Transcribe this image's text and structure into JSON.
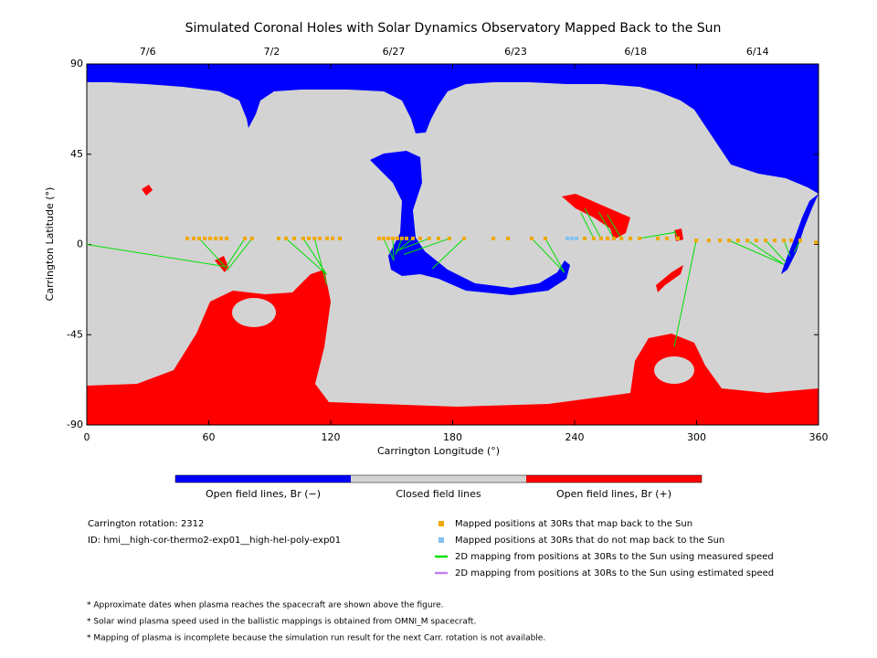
{
  "chart_data": {
    "type": "scatter",
    "title": "Simulated Coronal Holes with Solar Dynamics Observatory Mapped Back to the Sun",
    "xlabel": "Carrington Longitude (°)",
    "ylabel": "Carrington Latitude (°)",
    "xlim": [
      0,
      360
    ],
    "ylim": [
      -90,
      90
    ],
    "xticks": [
      0,
      60,
      120,
      180,
      240,
      300,
      360
    ],
    "yticks": [
      -90,
      -45,
      0,
      45,
      90
    ],
    "x2ticks": [
      {
        "value": 30,
        "label": "7/6"
      },
      {
        "value": 91,
        "label": "7/2"
      },
      {
        "value": 151,
        "label": "6/27"
      },
      {
        "value": 211,
        "label": "6/23"
      },
      {
        "value": 270,
        "label": "6/18"
      },
      {
        "value": 330,
        "label": "6/14"
      }
    ],
    "colorbar": [
      {
        "label": "Open field lines, Br (−)",
        "color": "#0000ff"
      },
      {
        "label": "Closed field lines",
        "color": "#d3d3d3"
      },
      {
        "label": "Open field lines, Br (+)",
        "color": "#ff0000"
      }
    ],
    "series": [
      {
        "name": "Mapped positions at 30Rs that map back to the Sun",
        "color": "#f0a800",
        "x": [
          49.4,
          52.6,
          55.3,
          58,
          60.7,
          63.4,
          66,
          68.8,
          77.8,
          81.3,
          94.4,
          98,
          102,
          106.5,
          109.2,
          112,
          114.6,
          118.2,
          120.9,
          124.5,
          143.8,
          146,
          148.3,
          150.6,
          152.8,
          155,
          157.3,
          160.4,
          164,
          168.5,
          173,
          178.4,
          185.6,
          200,
          207.2,
          218.9,
          225.6,
          245,
          249.4,
          253,
          256.2,
          259.3,
          263,
          267.4,
          272,
          280.9,
          285.4,
          290.8,
          299.8,
          306,
          311.5,
          316,
          320.4,
          325,
          329.4,
          334,
          338.4,
          343,
          346.5,
          351,
          358.7
        ],
        "values": [
          3,
          3,
          3,
          3,
          3,
          3,
          3,
          3,
          3,
          3,
          3,
          3,
          3,
          3,
          3,
          3,
          3,
          3,
          3,
          3,
          3,
          3,
          3,
          3,
          3,
          3,
          3,
          3,
          3,
          3,
          3,
          3,
          3,
          3,
          3,
          3,
          3,
          3,
          3,
          3,
          3,
          3,
          3,
          3,
          3,
          3,
          3,
          3,
          2,
          2,
          2,
          2,
          2,
          2,
          2,
          2,
          2,
          2,
          2,
          2,
          1
        ]
      },
      {
        "name": "Mapped positions at 30Rs that do not map back to the Sun",
        "color": "#80c0f0",
        "x": [
          236.4,
          238.6,
          240.9
        ],
        "values": [
          3,
          3,
          3
        ]
      },
      {
        "name": "2D mapping from positions at 30Rs to the Sun using measured speed",
        "color": "#00e000",
        "x": [
          [
            0,
            68
          ],
          [
            55.3,
            68
          ],
          [
            77.8,
            68
          ],
          [
            81.3,
            69
          ],
          [
            98,
            118
          ],
          [
            106.5,
            118
          ],
          [
            112,
            118
          ],
          [
            146,
            151
          ],
          [
            150.6,
            151
          ],
          [
            155,
            152
          ],
          [
            160.4,
            152
          ],
          [
            168.5,
            153
          ],
          [
            178.4,
            156
          ],
          [
            185.6,
            170
          ],
          [
            218.9,
            235
          ],
          [
            225.6,
            235
          ],
          [
            249.4,
            243
          ],
          [
            253,
            245
          ],
          [
            259.3,
            252
          ],
          [
            263,
            256
          ],
          [
            272,
            289
          ],
          [
            290.8,
            289
          ],
          [
            299.8,
            289
          ],
          [
            316,
            343
          ],
          [
            325,
            343
          ],
          [
            334,
            344
          ],
          [
            343,
            346
          ],
          [
            351,
            348
          ]
        ],
        "values": [
          [
            0,
            -11
          ],
          [
            3,
            -11
          ],
          [
            3,
            -12
          ],
          [
            3,
            -13
          ],
          [
            3,
            -15
          ],
          [
            3,
            -15
          ],
          [
            3,
            -20
          ],
          [
            3,
            -8
          ],
          [
            3,
            -8
          ],
          [
            3,
            -5
          ],
          [
            3,
            -4
          ],
          [
            3,
            -3
          ],
          [
            3,
            -5
          ],
          [
            3,
            -12
          ],
          [
            3,
            -14
          ],
          [
            3,
            -14
          ],
          [
            3,
            16
          ],
          [
            3,
            18
          ],
          [
            3,
            16
          ],
          [
            3,
            15
          ],
          [
            3,
            6
          ],
          [
            3,
            7
          ],
          [
            2,
            -51
          ],
          [
            2,
            -10
          ],
          [
            2,
            -10
          ],
          [
            2,
            -9
          ],
          [
            2,
            -6
          ],
          [
            2,
            -4
          ]
        ]
      },
      {
        "name": "2D mapping from positions at 30Rs to the Sun using estimated speed",
        "color": "#c080f0",
        "x": [],
        "values": []
      }
    ],
    "info": [
      "Carrington rotation: 2312",
      "ID: hmi__high-cor-thermo2-exp01__high-hel-poly-exp01"
    ],
    "notes": [
      "* Approximate dates when plasma reaches the spacecraft are shown above the figure.",
      "* Solar wind plasma speed used in the ballistic mappings is obtained from OMNI_M spacecraft.",
      "* Mapping of plasma is incomplete because the simulation run result for the next Carr. rotation is not available."
    ]
  }
}
